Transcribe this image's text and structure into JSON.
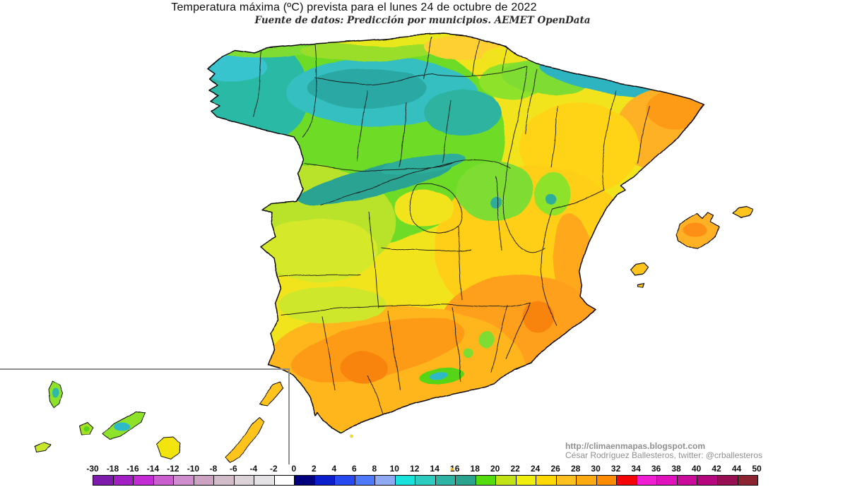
{
  "header": {
    "title": "Temperatura máxima (ºC) prevista para el lunes 24 de octubre de 2022",
    "subtitle": "Fuente de datos: Predicción por municipios. AEMET OpenData"
  },
  "attribution": {
    "url": "http://climaenmapas.blogspot.com",
    "author": "César Rodríguez Ballesteros, twitter: @crballesteros"
  },
  "map": {
    "region": "Spain peninsula with Balearic Islands",
    "inset": "Canary Islands"
  },
  "chart_data": {
    "type": "heatmap",
    "title": "Temperatura máxima (ºC) prevista para el lunes 24 de octubre de 2022",
    "subtitle": "Fuente de datos: Predicción por municipios. AEMET OpenData",
    "legend_position": "bottom",
    "scale_unit": "°C",
    "scale_range": [
      -30,
      50
    ],
    "scale_labels": [
      "-30",
      "-18",
      "-16",
      "-14",
      "-12",
      "-10",
      "-8",
      "-6",
      "-4",
      "-2",
      "0",
      "2",
      "4",
      "6",
      "8",
      "10",
      "12",
      "14",
      "16",
      "18",
      "20",
      "22",
      "24",
      "26",
      "28",
      "30",
      "32",
      "34",
      "36",
      "38",
      "40",
      "42",
      "44",
      "50"
    ],
    "scale_colors": [
      "#7d1cac",
      "#a21fc4",
      "#c32cd4",
      "#ca5ecf",
      "#cf8ccf",
      "#cda3c4",
      "#d2bcca",
      "#dcd3d8",
      "#e4e2e4",
      "#ffffff",
      "#00007e",
      "#0a1ecb",
      "#2749f0",
      "#4e79fb",
      "#8fa9f2",
      "#19e2da",
      "#2cccc0",
      "#2eb4a4",
      "#2aa38e",
      "#55dc0e",
      "#c2e416",
      "#f0ee0c",
      "#ffd800",
      "#ffc020",
      "#ffaa10",
      "#ff8c00",
      "#f40404",
      "#f01ed2",
      "#e012bc",
      "#cb0b9c",
      "#b5057f",
      "#970f52",
      "#8c2330"
    ],
    "regions_summary": {
      "northwest_galicia": "12-16",
      "north_meseta_mountains": "10-14",
      "pyrenees": "10-14",
      "central_meseta": "18-22",
      "ebro_valley_northeast": "24-28",
      "east_coast_valencia_murcia": "26-30",
      "andalusia_south": "26-30",
      "balearic_islands": "26-30",
      "canary_islands": "22-28"
    }
  }
}
